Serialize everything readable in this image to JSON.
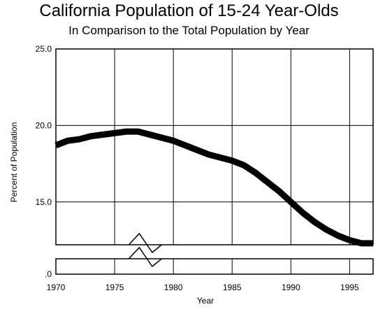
{
  "chart_data": {
    "type": "line",
    "title": "California Population of 15-24 Year-Olds",
    "subtitle": "In Comparison to the Total Population by Year",
    "xlabel": "Year",
    "ylabel": "Percent of Population",
    "xlim": [
      1970,
      1997
    ],
    "ylim": [
      0,
      25
    ],
    "axis_break": {
      "from": 0,
      "to": 12.2
    },
    "x_ticks": [
      "1970",
      "1975",
      "1980",
      "1985",
      "1990",
      "1995"
    ],
    "y_ticks": [
      "25.0",
      "20.0",
      "15.0",
      ".0"
    ],
    "grid": true,
    "x": [
      1970,
      1971,
      1972,
      1973,
      1974,
      1975,
      1976,
      1977,
      1978,
      1979,
      1980,
      1981,
      1982,
      1983,
      1984,
      1985,
      1986,
      1987,
      1988,
      1989,
      1990,
      1991,
      1992,
      1993,
      1994,
      1995,
      1996,
      1997
    ],
    "values": [
      18.7,
      19.0,
      19.1,
      19.3,
      19.4,
      19.5,
      19.6,
      19.6,
      19.4,
      19.2,
      19.0,
      18.7,
      18.4,
      18.1,
      17.9,
      17.7,
      17.4,
      16.9,
      16.3,
      15.7,
      15.0,
      14.3,
      13.7,
      13.2,
      12.8,
      12.5,
      12.3,
      12.3
    ],
    "series": [
      {
        "values": [
          18.7,
          19.0,
          19.1,
          19.3,
          19.4,
          19.5,
          19.6,
          19.6,
          19.4,
          19.2,
          19.0,
          18.7,
          18.4,
          18.1,
          17.9,
          17.7,
          17.4,
          16.9,
          16.3,
          15.7,
          15.0,
          14.3,
          13.7,
          13.2,
          12.8,
          12.5,
          12.3,
          12.3
        ]
      }
    ],
    "line_color": "#000000"
  }
}
